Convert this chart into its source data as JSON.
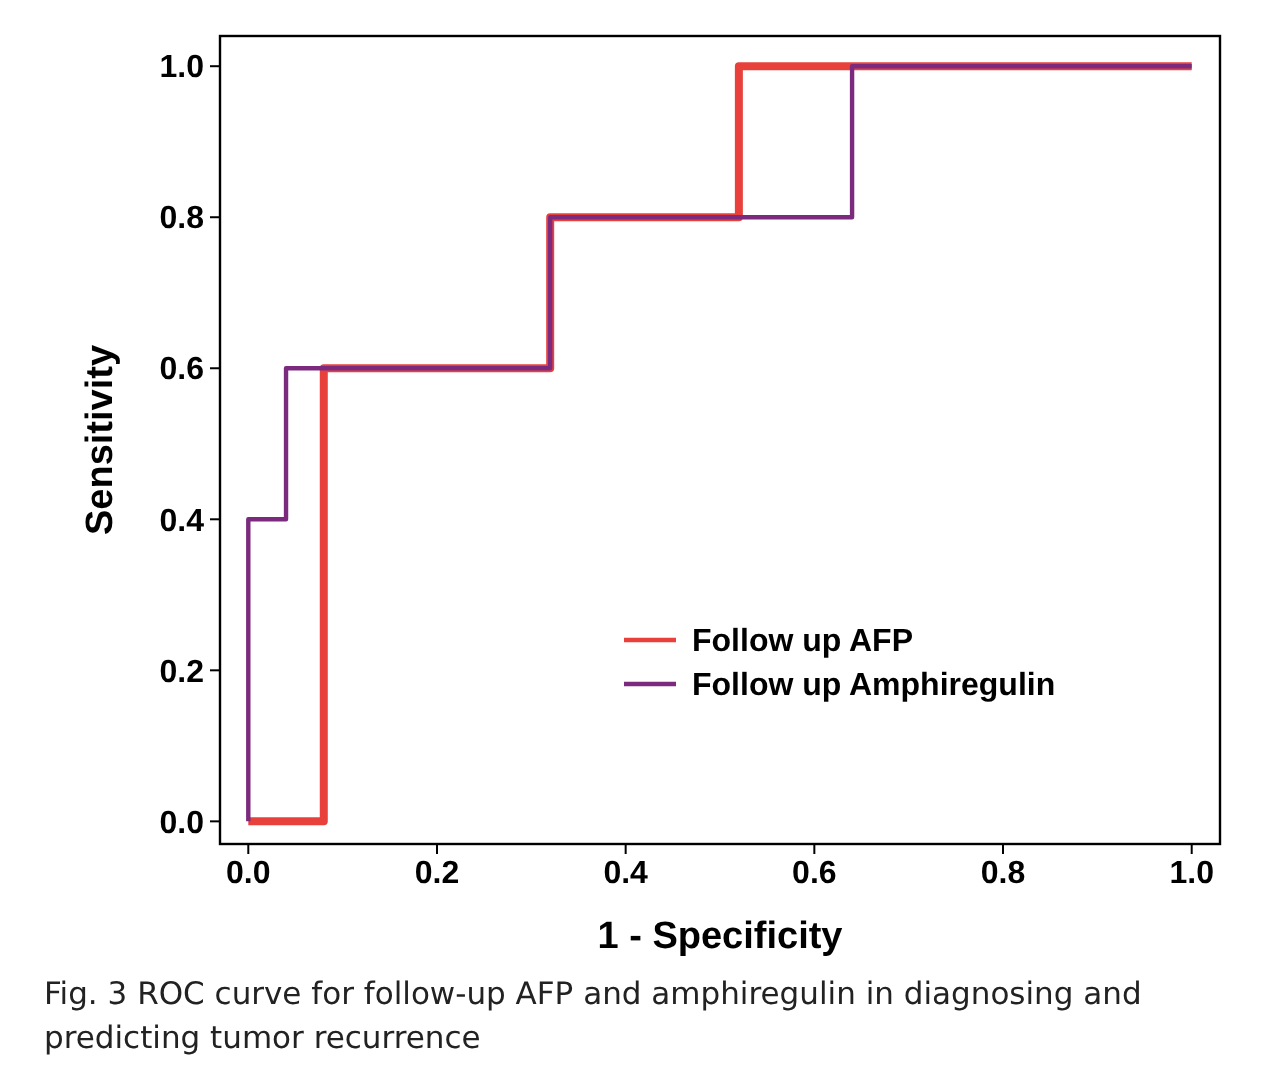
{
  "chart_data": {
    "type": "line",
    "xlabel": "1 - Specificity",
    "ylabel": "Sensitivity",
    "xlim": [
      -0.03,
      1.03
    ],
    "ylim": [
      -0.03,
      1.04
    ],
    "xticks": [
      {
        "value": 0,
        "label": "0.0"
      },
      {
        "value": 0.2,
        "label": "0.2"
      },
      {
        "value": 0.4,
        "label": "0.4"
      },
      {
        "value": 0.6,
        "label": "0.6"
      },
      {
        "value": 0.8,
        "label": "0.8"
      },
      {
        "value": 1,
        "label": "1.0"
      }
    ],
    "yticks": [
      {
        "value": 0,
        "label": "0.0"
      },
      {
        "value": 0.2,
        "label": "0.2"
      },
      {
        "value": 0.4,
        "label": "0.4"
      },
      {
        "value": 0.6,
        "label": "0.6"
      },
      {
        "value": 0.8,
        "label": "0.8"
      },
      {
        "value": 1,
        "label": "1.0"
      }
    ],
    "grid": false,
    "legend": "bottom right",
    "marker": "none",
    "line_style": "solid",
    "series": [
      {
        "name": "Follow up AFP",
        "color": "#e8413c",
        "x": [
          0,
          0.08,
          0.08,
          0.32,
          0.32,
          0.52,
          0.52,
          1
        ],
        "values": [
          0,
          0,
          0.6,
          0.6,
          0.8,
          0.8,
          1,
          1
        ]
      },
      {
        "name": "Follow up Amphiregulin",
        "color": "#7b2a7e",
        "x": [
          0,
          0,
          0.04,
          0.04,
          0.32,
          0.32,
          0.64,
          0.64,
          1
        ],
        "values": [
          0,
          0.4,
          0.4,
          0.6,
          0.6,
          0.8,
          0.8,
          1,
          1
        ]
      }
    ],
    "annotations": [
      "Fig. 3 ROC curve for follow-up AFP and amphiregulin in diagnosing and predicting tumor recurrence"
    ]
  }
}
